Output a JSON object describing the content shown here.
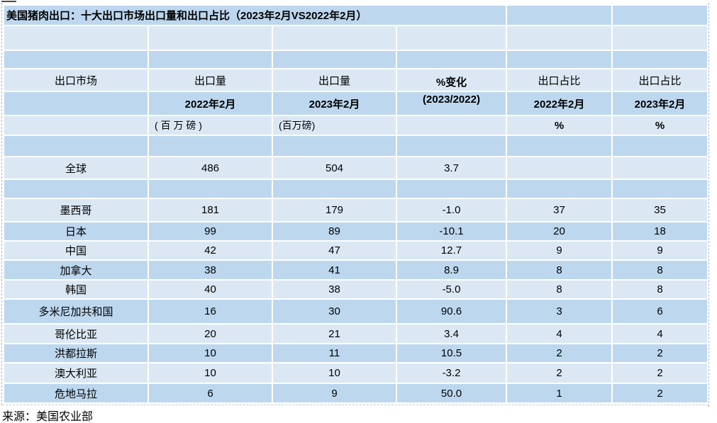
{
  "title": "美国猪肉出口：十大出口市场出口量和出口占比（2023年2月VS2022年2月）",
  "source": "来源：美国农业部",
  "colors": {
    "row_dark": "#bdd7ee",
    "row_light": "#dbe8f4",
    "text": "#000000"
  },
  "columns": {
    "market": "出口市场",
    "volume": "出口量",
    "pct_change": "%变化",
    "pct_change_period": "(2023/2022)",
    "share": "出口占比",
    "date_2022": "2022年2月",
    "date_2023": "2023年2月",
    "unit_volume_spaced": "( 百 万 磅 )",
    "unit_volume": "(百万磅)",
    "unit_percent": "%"
  },
  "rows": [
    {
      "market": "全球",
      "volume_2022": "486",
      "volume_2023": "504",
      "pct_change": "3.7",
      "share_2022": "",
      "share_2023": ""
    },
    {
      "market": "墨西哥",
      "volume_2022": "181",
      "volume_2023": "179",
      "pct_change": "-1.0",
      "share_2022": "37",
      "share_2023": "35"
    },
    {
      "market": "日本",
      "volume_2022": "99",
      "volume_2023": "89",
      "pct_change": "-10.1",
      "share_2022": "20",
      "share_2023": "18"
    },
    {
      "market": "中国",
      "volume_2022": "42",
      "volume_2023": "47",
      "pct_change": "12.7",
      "share_2022": "9",
      "share_2023": "9"
    },
    {
      "market": "加拿大",
      "volume_2022": "38",
      "volume_2023": "41",
      "pct_change": "8.9",
      "share_2022": "8",
      "share_2023": "8"
    },
    {
      "market": "韩国",
      "volume_2022": "40",
      "volume_2023": "38",
      "pct_change": "-5.0",
      "share_2022": "8",
      "share_2023": "8"
    },
    {
      "market": "多米尼加共和国",
      "volume_2022": "16",
      "volume_2023": "30",
      "pct_change": "90.6",
      "share_2022": "3",
      "share_2023": "6"
    },
    {
      "market": "哥伦比亚",
      "volume_2022": "20",
      "volume_2023": "21",
      "pct_change": "3.4",
      "share_2022": "4",
      "share_2023": "4"
    },
    {
      "market": "洪都拉斯",
      "volume_2022": "10",
      "volume_2023": "11",
      "pct_change": "10.5",
      "share_2022": "2",
      "share_2023": "2"
    },
    {
      "market": "澳大利亚",
      "volume_2022": "10",
      "volume_2023": "10",
      "pct_change": "-3.2",
      "share_2022": "2",
      "share_2023": "2"
    },
    {
      "market": "危地马拉",
      "volume_2022": "6",
      "volume_2023": "9",
      "pct_change": "50.0",
      "share_2022": "1",
      "share_2023": "2"
    }
  ],
  "chart_data": {
    "type": "table",
    "title": "美国猪肉出口：十大出口市场出口量和出口占比（2023年2月VS2022年2月）",
    "columns": [
      "出口市场",
      "出口量 2022年2月 (百万磅)",
      "出口量 2023年2月 (百万磅)",
      "%变化 (2023/2022)",
      "出口占比 2022年2月 %",
      "出口占比 2023年2月 %"
    ],
    "rows": [
      [
        "全球",
        486,
        504,
        3.7,
        null,
        null
      ],
      [
        "墨西哥",
        181,
        179,
        -1.0,
        37,
        35
      ],
      [
        "日本",
        99,
        89,
        -10.1,
        20,
        18
      ],
      [
        "中国",
        42,
        47,
        12.7,
        9,
        9
      ],
      [
        "加拿大",
        38,
        41,
        8.9,
        8,
        8
      ],
      [
        "韩国",
        40,
        38,
        -5.0,
        8,
        8
      ],
      [
        "多米尼加共和国",
        16,
        30,
        90.6,
        3,
        6
      ],
      [
        "哥伦比亚",
        20,
        21,
        3.4,
        4,
        4
      ],
      [
        "洪都拉斯",
        10,
        11,
        10.5,
        2,
        2
      ],
      [
        "澳大利亚",
        10,
        10,
        -3.2,
        2,
        2
      ],
      [
        "危地马拉",
        6,
        9,
        50.0,
        1,
        2
      ]
    ],
    "source": "来源：美国农业部"
  }
}
